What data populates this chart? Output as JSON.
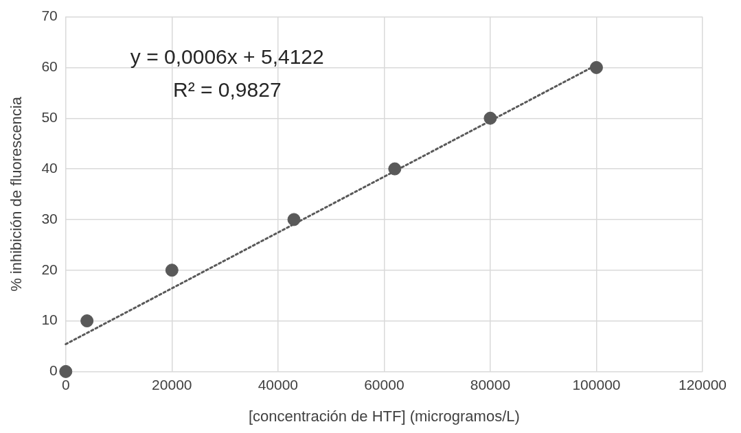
{
  "chart_data": {
    "type": "scatter",
    "xlabel": "[concentración de HTF] (microgramos/L)",
    "ylabel": "% inhibición de fluorescencia",
    "annotations": [
      "y = 0,0006x + 5,4122",
      "R² = 0,9827"
    ],
    "series": [
      {
        "color": "#595959",
        "x": [
          0,
          4000,
          20000,
          43000,
          62000,
          80000,
          100000
        ],
        "values": [
          0,
          10,
          20,
          30,
          40,
          50,
          60
        ],
        "marker": "circle"
      },
      {
        "type": "line",
        "color": "#595959",
        "x": [
          0,
          100000
        ],
        "values": [
          5.4,
          60.5
        ],
        "line_style": "dotted",
        "marker": "none"
      }
    ],
    "xlim": [
      0,
      120000
    ],
    "xticks": [
      0,
      20000,
      40000,
      60000,
      80000,
      100000,
      120000
    ],
    "ylim": [
      0,
      70
    ],
    "yticks": [
      0,
      10,
      20,
      30,
      40,
      50,
      60,
      70
    ],
    "grid": true,
    "legend": false
  }
}
